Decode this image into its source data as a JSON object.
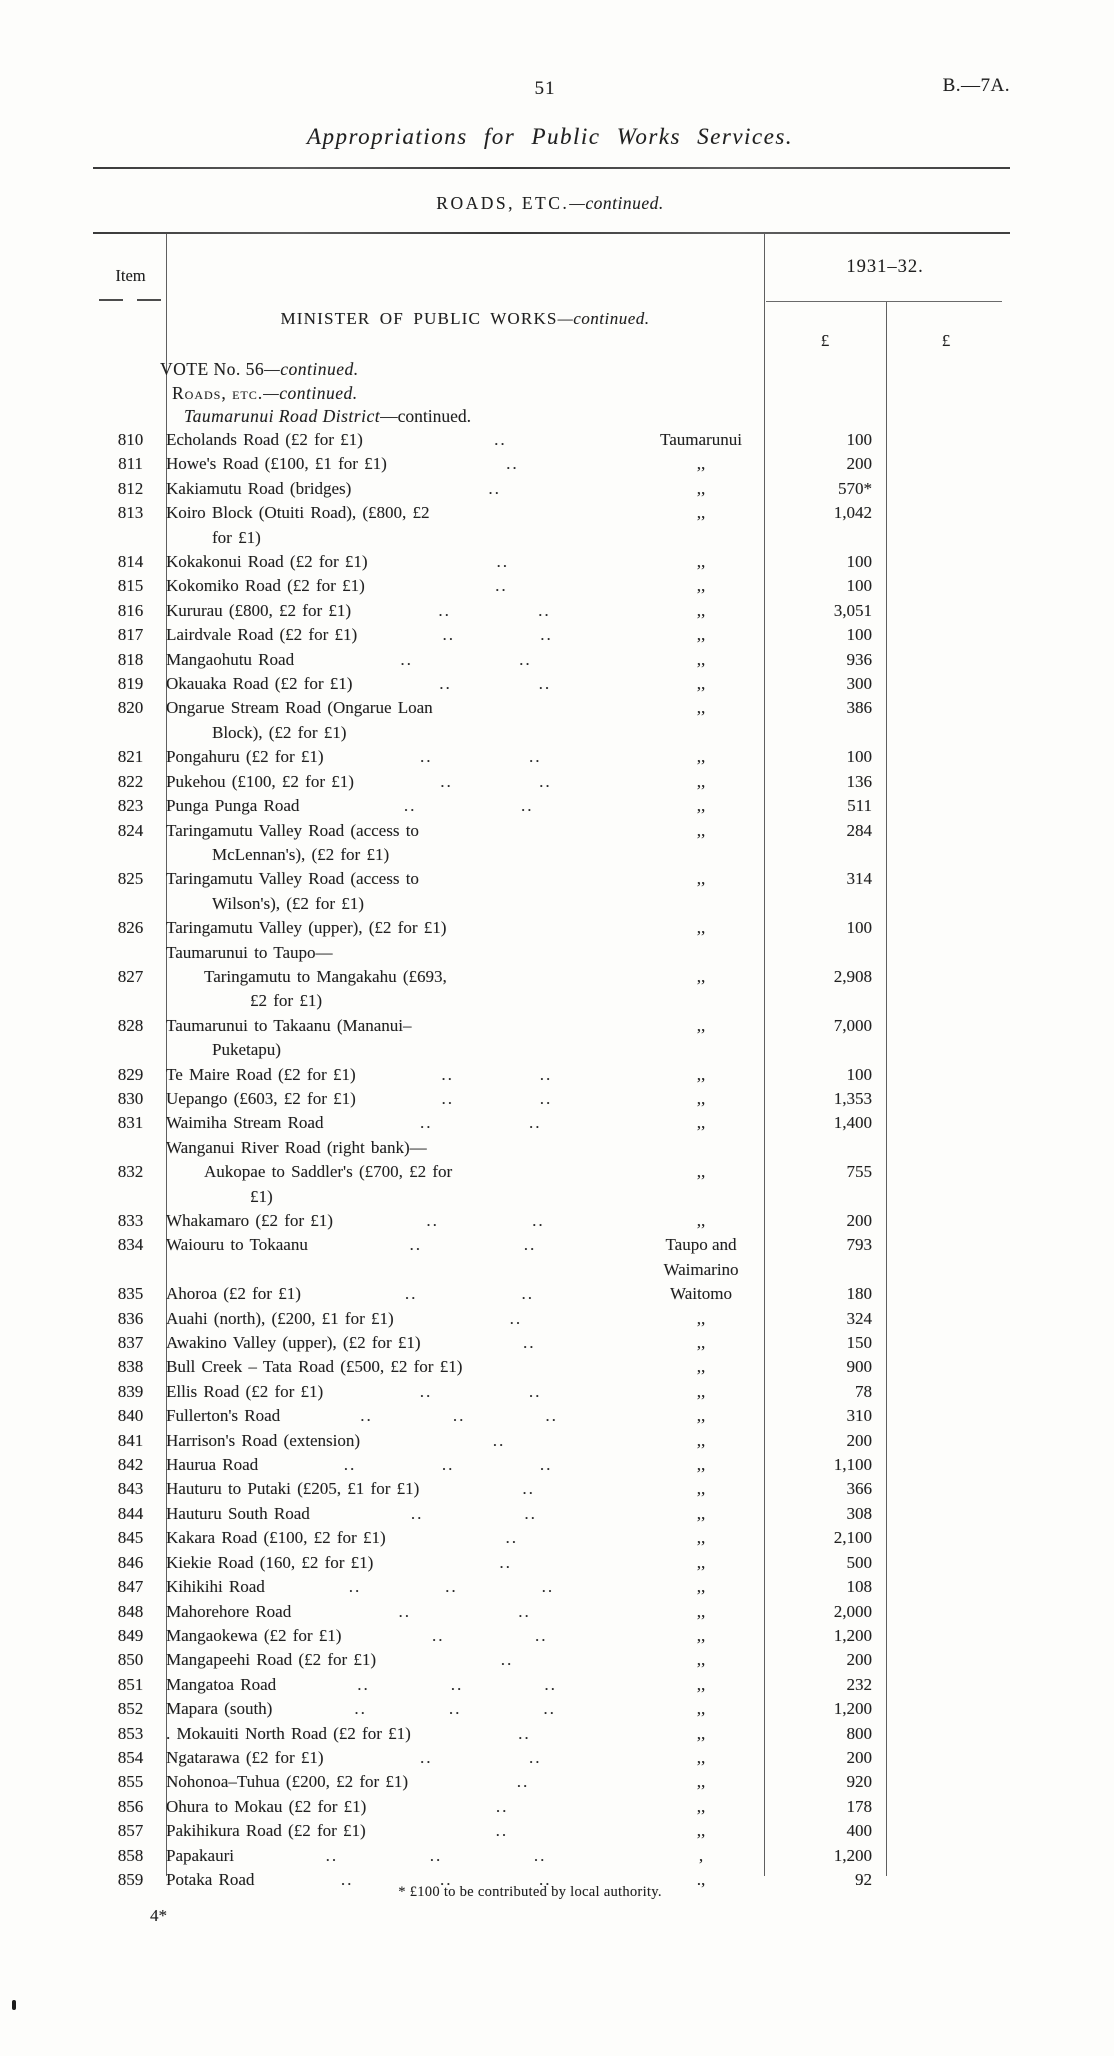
{
  "page": {
    "number": "51",
    "doc_ref": "B.—7A.",
    "title": "Appropriations for Public Works Services.",
    "section_heading": {
      "caps": "ROADS, ETC.",
      "cont": "—continued."
    },
    "footnote": "* £100 to be contributed by local authority.",
    "footer_mark": "4*"
  },
  "table": {
    "item_header": "Item",
    "year_header": "1931–32.",
    "currency_symbol_1": "£",
    "currency_symbol_2": "£",
    "minister_heading": {
      "caps": "MINISTER OF PUBLIC WORKS",
      "cont": "—continued."
    },
    "vote_heading": {
      "caps": "VOTE No. 56",
      "cont": "—continued."
    },
    "roads_heading": {
      "caps": "Roads, etc.",
      "cont": "—continued."
    },
    "district_heading": {
      "it": "Taumarunui Road District",
      "cont": "—continued."
    },
    "rows": [
      {
        "item": "810",
        "desc": "Echolands Road (£2 for £1)",
        "dots": "..",
        "loc": "Taumarunui",
        "amt": "100"
      },
      {
        "item": "811",
        "desc": "Howe's Road (£100, £1 for £1)",
        "dots": "..",
        "loc": ",,",
        "amt": "200"
      },
      {
        "item": "812",
        "desc": "Kakiamutu Road (bridges)",
        "dots": "..",
        "loc": ",,",
        "amt": "570*"
      },
      {
        "item": "813",
        "desc": "Koiro Block (Otuiti Road), (£800, £2\nfor £1)",
        "dots": "",
        "loc": ",,",
        "amt": "1,042"
      },
      {
        "item": "814",
        "desc": "Kokakonui Road (£2 for £1)",
        "dots": "..",
        "loc": ",,",
        "amt": "100"
      },
      {
        "item": "815",
        "desc": "Kokomiko Road (£2 for £1)",
        "dots": "..",
        "loc": ",,",
        "amt": "100"
      },
      {
        "item": "816",
        "desc": "Kururau (£800, £2 for £1)",
        "dots": ".. ..",
        "loc": ",,",
        "amt": "3,051"
      },
      {
        "item": "817",
        "desc": "Lairdvale Road (£2 for £1)",
        "dots": ".. ..",
        "loc": ",,",
        "amt": "100"
      },
      {
        "item": "818",
        "desc": "Mangaohutu Road",
        "dots": ".. ..",
        "loc": ",,",
        "amt": "936"
      },
      {
        "item": "819",
        "desc": "Okauaka Road (£2 for £1)",
        "dots": ".. ..",
        "loc": ",,",
        "amt": "300"
      },
      {
        "item": "820",
        "desc": "Ongarue Stream Road (Ongarue Loan\nBlock), (£2 for £1)",
        "dots": "",
        "loc": ",,",
        "amt": "386"
      },
      {
        "item": "821",
        "desc": "Pongahuru (£2 for £1)",
        "dots": ".. ..",
        "loc": ",,",
        "amt": "100"
      },
      {
        "item": "822",
        "desc": "Pukehou (£100, £2 for £1)",
        "dots": ".. ..",
        "loc": ",,",
        "amt": "136"
      },
      {
        "item": "823",
        "desc": "Punga Punga Road",
        "dots": ".. ..",
        "loc": ",,",
        "amt": "511"
      },
      {
        "item": "824",
        "desc": "Taringamutu Valley Road (access to\nMcLennan's), (£2 for £1)",
        "dots": "",
        "loc": ",,",
        "amt": "284"
      },
      {
        "item": "825",
        "desc": "Taringamutu Valley Road (access to\nWilson's), (£2 for £1)",
        "dots": "",
        "loc": ",,",
        "amt": "314"
      },
      {
        "item": "826",
        "desc": "Taringamutu Valley (upper), (£2 for £1)",
        "dots": "",
        "loc": ",,",
        "amt": "100"
      },
      {
        "group": true,
        "desc": "Taumarunui to Taupo—"
      },
      {
        "item": "827",
        "indent": true,
        "desc": "Taringamutu to Mangakahu (£693,\n£2 for £1)",
        "dots": "",
        "loc": ",,",
        "amt": "2,908"
      },
      {
        "item": "828",
        "desc": "Taumarunui to Takaanu (Mananui–\nPuketapu)",
        "dots": "",
        "loc": ",,",
        "amt": "7,000"
      },
      {
        "item": "829",
        "desc": "Te Maire Road (£2 for £1)",
        "dots": ".. ..",
        "loc": ",,",
        "amt": "100"
      },
      {
        "item": "830",
        "desc": "Uepango (£603, £2 for £1)",
        "dots": ".. ..",
        "loc": ",,",
        "amt": "1,353"
      },
      {
        "item": "831",
        "desc": "Waimiha Stream Road",
        "dots": ".. ..",
        "loc": ",,",
        "amt": "1,400"
      },
      {
        "group": true,
        "desc": "Wanganui River Road (right bank)—"
      },
      {
        "item": "832",
        "indent": true,
        "desc": "Aukopae to Saddler's (£700, £2 for\n£1)",
        "dots": "",
        "loc": ",,",
        "amt": "755"
      },
      {
        "item": "833",
        "desc": "Whakamaro (£2 for £1)",
        "dots": ".. ..",
        "loc": ",,",
        "amt": "200"
      },
      {
        "item": "834",
        "desc": "Waiouru to Tokaanu",
        "dots": ".. ..",
        "loc": "Taupo and\nWaimarino",
        "amt": "793"
      },
      {
        "item": "835",
        "desc": "Ahoroa (£2 for £1)",
        "dots": ".. ..",
        "loc": "Waitomo",
        "amt": "180"
      },
      {
        "item": "836",
        "desc": "Auahi (north), (£200, £1 for £1)",
        "dots": "..",
        "loc": ",,",
        "amt": "324"
      },
      {
        "item": "837",
        "desc": "Awakino Valley (upper), (£2 for £1)",
        "dots": "..",
        "loc": ",,",
        "amt": "150"
      },
      {
        "item": "838",
        "desc": "Bull Creek – Tata Road (£500, £2 for £1)",
        "dots": "",
        "loc": ",,",
        "amt": "900"
      },
      {
        "item": "839",
        "desc": "Ellis Road (£2 for £1)",
        "dots": ".. ..",
        "loc": ",,",
        "amt": "78"
      },
      {
        "item": "840",
        "desc": "Fullerton's Road",
        "dots": ".. .. ..",
        "loc": ",,",
        "amt": "310"
      },
      {
        "item": "841",
        "desc": "Harrison's Road (extension)",
        "dots": "..",
        "loc": ",,",
        "amt": "200"
      },
      {
        "item": "842",
        "desc": "Haurua Road",
        "dots": ".. .. ..",
        "loc": ",,",
        "amt": "1,100"
      },
      {
        "item": "843",
        "desc": "Hauturu to Putaki (£205, £1 for £1)",
        "dots": "..",
        "loc": ",,",
        "amt": "366"
      },
      {
        "item": "844",
        "desc": "Hauturu South Road",
        "dots": ".. ..",
        "loc": ",,",
        "amt": "308"
      },
      {
        "item": "845",
        "desc": "Kakara Road (£100, £2 for £1)",
        "dots": "..",
        "loc": ",,",
        "amt": "2,100"
      },
      {
        "item": "846",
        "desc": "Kiekie Road (160, £2 for £1)",
        "dots": "..",
        "loc": ",,",
        "amt": "500"
      },
      {
        "item": "847",
        "desc": "Kihikihi Road",
        "dots": ".. .. ..",
        "loc": ",,",
        "amt": "108"
      },
      {
        "item": "848",
        "desc": "Mahorehore Road",
        "dots": ".. ..",
        "loc": ",,",
        "amt": "2,000"
      },
      {
        "item": "849",
        "desc": "Mangaokewa (£2 for £1)",
        "dots": ".. ..",
        "loc": ",,",
        "amt": "1,200"
      },
      {
        "item": "850",
        "desc": "Mangapeehi Road (£2 for £1)",
        "dots": "..",
        "loc": ",,",
        "amt": "200"
      },
      {
        "item": "851",
        "desc": "Mangatoa Road",
        "dots": ".. .. ..",
        "loc": ",,",
        "amt": "232"
      },
      {
        "item": "852",
        "desc": "Mapara (south)",
        "dots": ".. .. ..",
        "loc": ",,",
        "amt": "1,200"
      },
      {
        "item": "853",
        "desc": ". Mokauiti North Road (£2 for £1)",
        "dots": "..",
        "loc": ",,",
        "amt": "800"
      },
      {
        "item": "854",
        "desc": "Ngatarawa (£2 for £1)",
        "dots": ".. ..",
        "loc": ",,",
        "amt": "200"
      },
      {
        "item": "855",
        "desc": "Nohonoa–Tuhua (£200, £2 for £1)",
        "dots": "..",
        "loc": ",,",
        "amt": "920"
      },
      {
        "item": "856",
        "desc": "Ohura to Mokau (£2 for £1)",
        "dots": "..",
        "loc": ",,",
        "amt": "178"
      },
      {
        "item": "857",
        "desc": "Pakihikura Road (£2 for £1)",
        "dots": "..",
        "loc": ",,",
        "amt": "400"
      },
      {
        "item": "858",
        "desc": "Papakauri",
        "dots": ".. .. ..",
        "loc": ",",
        "amt": "1,200"
      },
      {
        "item": "859",
        "desc": "Potaka Road",
        "dots": ".. .. ..",
        "loc": ".,",
        "amt": "92"
      }
    ]
  }
}
